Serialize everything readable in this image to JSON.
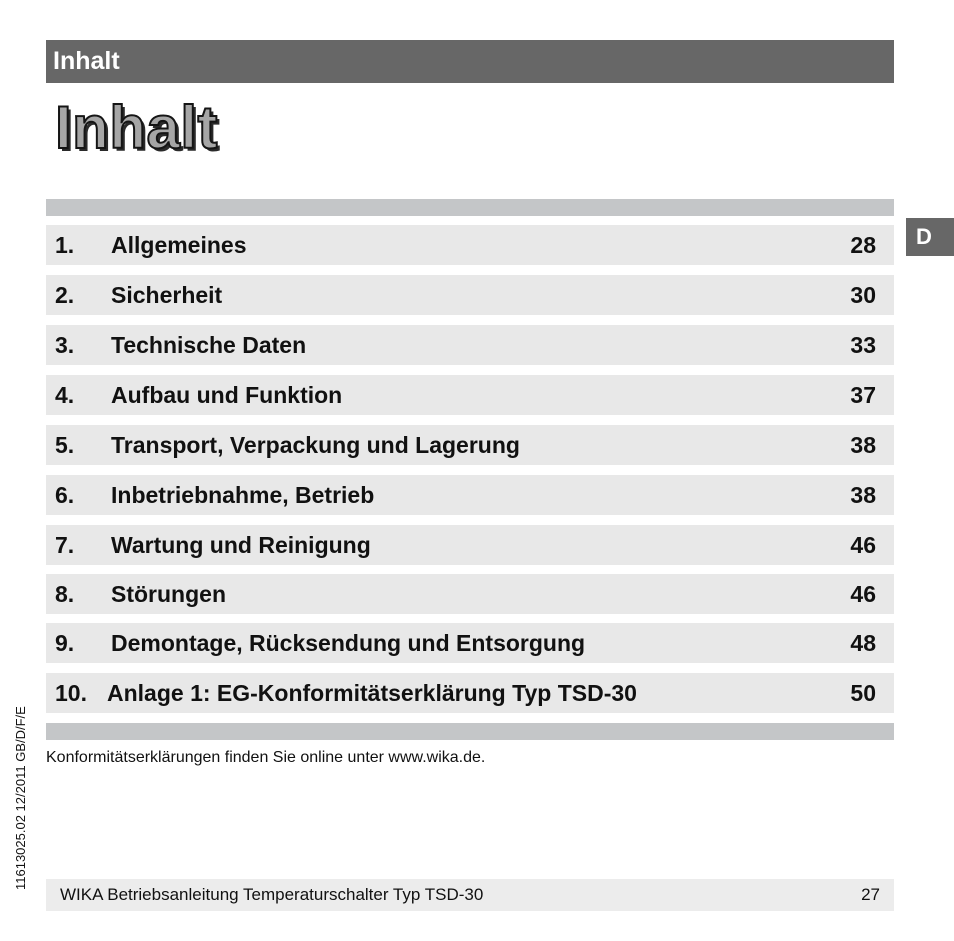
{
  "header": {
    "title": "Inhalt"
  },
  "page_title": "Inhalt",
  "lang_tab": "D",
  "toc": [
    {
      "num": "1.",
      "label": "Allgemeines",
      "page": "28"
    },
    {
      "num": "2.",
      "label": "Sicherheit",
      "page": "30"
    },
    {
      "num": "3.",
      "label": "Technische Daten",
      "page": "33"
    },
    {
      "num": "4.",
      "label": "Aufbau und Funktion",
      "page": "37"
    },
    {
      "num": "5.",
      "label": "Transport, Verpackung und Lagerung",
      "page": "38"
    },
    {
      "num": "6.",
      "label": "Inbetriebnahme, Betrieb",
      "page": "38"
    },
    {
      "num": "7.",
      "label": "Wartung und Reinigung",
      "page": "46"
    },
    {
      "num": "8.",
      "label": "Störungen",
      "page": "46"
    },
    {
      "num": "9.",
      "label": "Demontage, Rücksendung und Entsorgung",
      "page": "48"
    },
    {
      "num": "10.",
      "label": "Anlage 1: EG-Konformitätserklärung Typ TSD-30",
      "page": "50"
    }
  ],
  "note": "Konformitätserklärungen finden Sie online unter www.wika.de.",
  "footer": {
    "text": "WIKA Betriebsanleitung Temperaturschalter Typ TSD-30",
    "page": "27"
  },
  "side_code": "11613025.02 12/2011 GB/D/F/E",
  "colors": {
    "header_bar": "#676767",
    "row_background": "#e8e8e8",
    "rule": "#c4c6c8"
  }
}
